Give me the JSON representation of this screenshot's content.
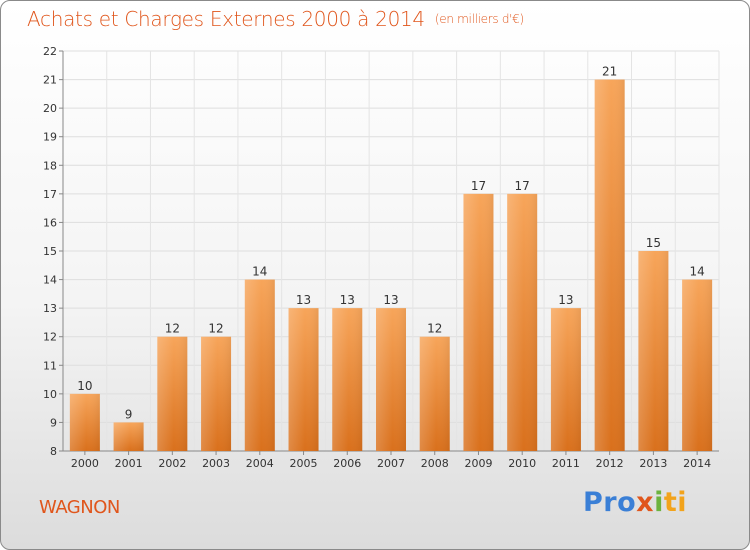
{
  "header": {
    "title": "Achats et Charges Externes 2000 à 2014",
    "unit": "(en milliers d'€)"
  },
  "footer": {
    "commune": "WAGNON",
    "logo": [
      "Pro",
      "x",
      "i",
      "ti"
    ]
  },
  "colors": {
    "bar_top": "#f7a55a",
    "bar_bottom": "#d9701c",
    "title": "#e0561c"
  },
  "chart_data": {
    "type": "bar",
    "title": "Achats et Charges Externes 2000 à 2014",
    "subtitle": "(en milliers d'€)",
    "xlabel": "",
    "ylabel": "",
    "categories": [
      "2000",
      "2001",
      "2002",
      "2003",
      "2004",
      "2005",
      "2006",
      "2007",
      "2008",
      "2009",
      "2010",
      "2011",
      "2012",
      "2013",
      "2014"
    ],
    "values": [
      10,
      9,
      12,
      12,
      14,
      13,
      13,
      13,
      12,
      17,
      17,
      13,
      21,
      15,
      14
    ],
    "data_labels": [
      "10",
      "9",
      "12",
      "12",
      "14",
      "13",
      "13",
      "13",
      "12",
      "17",
      "17",
      "13",
      "21",
      "15",
      "14"
    ],
    "ylim": [
      8,
      22
    ],
    "yticks": [
      "8",
      "9",
      "10",
      "11",
      "12",
      "13",
      "14",
      "15",
      "16",
      "17",
      "18",
      "19",
      "20",
      "21",
      "22"
    ],
    "grid": true
  }
}
